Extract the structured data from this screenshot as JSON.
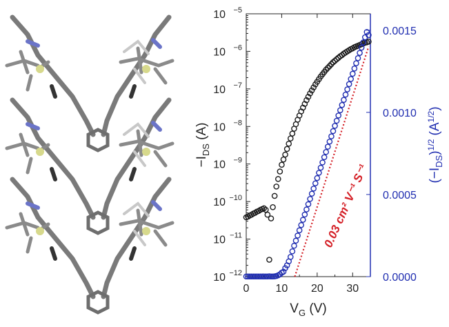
{
  "chart_data": {
    "type": "scatter",
    "xlabel": "V",
    "xlabel_sub": "G",
    "xlabel_unit": "(V)",
    "ylabel_left_prefix": "−I",
    "ylabel_left_sub": "DS",
    "ylabel_left_unit": "(A)",
    "ylabel_right_pre": "(−I",
    "ylabel_right_sub": "DS",
    "ylabel_right_mid": ")",
    "ylabel_right_sup": "1/2",
    "ylabel_right_unit": "(A",
    "ylabel_right_unit_sup": "1/2",
    "ylabel_right_unit_end": ")",
    "x_range": [
      0,
      35
    ],
    "x_ticks": [
      0,
      10,
      20,
      30
    ],
    "y_left_log": true,
    "y_left_range_exp": [
      -12,
      -5
    ],
    "y_left_ticks_exp": [
      -12,
      -11,
      -10,
      -9,
      -8,
      -7,
      -6,
      -5
    ],
    "y_right_range": [
      0.0,
      0.0016
    ],
    "y_right_ticks": [
      "0.0000",
      "0.0005",
      "0.0010",
      "0.0015"
    ],
    "annotation": {
      "text": "0.03 cm² V⁻¹ S⁻¹",
      "color": "#d41f26"
    },
    "fit_line": {
      "x": [
        13.7,
        34.5
      ],
      "y": [
        0.0,
        0.0014
      ],
      "color": "#d41f26"
    },
    "series": [
      {
        "axis": "left",
        "color": "#1a1a1a",
        "x": [
          0,
          0.5,
          1,
          1.5,
          2,
          2.5,
          3,
          3.5,
          4,
          4.5,
          5,
          5.5,
          6,
          6.5,
          7,
          7.5,
          8,
          8.5,
          9,
          9.5,
          10,
          10.5,
          11,
          11.5,
          12,
          12.5,
          13,
          13.5,
          14,
          14.5,
          15,
          15.5,
          16,
          16.5,
          17,
          17.5,
          18,
          18.5,
          19,
          19.5,
          20,
          20.5,
          21,
          21.5,
          22,
          22.5,
          23,
          23.5,
          24,
          24.5,
          25,
          25.5,
          26,
          26.5,
          27,
          27.5,
          28,
          28.5,
          29,
          29.5,
          30,
          30.5,
          31,
          31.5,
          32,
          32.5,
          33,
          33.5,
          34,
          34.5
        ],
        "y_exp": [
          -10.42,
          -10.4,
          -10.37,
          -10.35,
          -10.32,
          -10.3,
          -10.27,
          -10.25,
          -10.22,
          -10.2,
          -10.18,
          -10.22,
          -10.35,
          -11.55,
          -10.45,
          -10.15,
          -9.85,
          -9.6,
          -9.4,
          -9.2,
          -9.02,
          -8.88,
          -8.75,
          -8.6,
          -8.46,
          -8.32,
          -8.19,
          -8.06,
          -7.94,
          -7.82,
          -7.71,
          -7.6,
          -7.5,
          -7.4,
          -7.3,
          -7.21,
          -7.12,
          -7.04,
          -6.96,
          -6.88,
          -6.81,
          -6.74,
          -6.67,
          -6.61,
          -6.55,
          -6.49,
          -6.44,
          -6.39,
          -6.34,
          -6.29,
          -6.25,
          -6.21,
          -6.17,
          -6.13,
          -6.1,
          -6.06,
          -6.03,
          -6.0,
          -5.97,
          -5.94,
          -5.92,
          -5.89,
          -5.87,
          -5.85,
          -5.83,
          -5.81,
          -5.79,
          -5.77,
          -5.76,
          -5.74
        ]
      },
      {
        "axis": "right",
        "color": "#1f2db0",
        "x": [
          0,
          0.5,
          1,
          1.5,
          2,
          2.5,
          3,
          3.5,
          4,
          4.5,
          5,
          5.5,
          6,
          6.5,
          7,
          7.5,
          8,
          8.5,
          9,
          9.5,
          10,
          10.5,
          11,
          11.5,
          12,
          12.5,
          13,
          13.5,
          14,
          14.5,
          15,
          15.5,
          16,
          16.5,
          17,
          17.5,
          18,
          18.5,
          19,
          19.5,
          20,
          20.5,
          21,
          21.5,
          22,
          22.5,
          23,
          23.5,
          24,
          24.5,
          25,
          25.5,
          26,
          26.5,
          27,
          27.5,
          28,
          28.5,
          29,
          29.5,
          30,
          30.5,
          31,
          31.5,
          32,
          32.5,
          33,
          33.5,
          34,
          34.5
        ],
        "y": [
          1e-06,
          1e-06,
          1e-06,
          1e-06,
          1e-06,
          1e-06,
          1e-06,
          1e-06,
          1e-06,
          1e-06,
          1e-06,
          1e-06,
          1e-06,
          2e-06,
          1e-06,
          1e-06,
          2e-06,
          4e-06,
          8e-06,
          1.4e-05,
          2.4e-05,
          3e-05,
          5.2e-05,
          6.9e-05,
          9.3e-05,
          0.00012,
          0.000154,
          0.000188,
          0.000219,
          0.00025,
          0.000282,
          0.000314,
          0.000346,
          0.000378,
          0.000409,
          0.000441,
          0.000473,
          0.000505,
          0.000536,
          0.000568,
          0.0006,
          0.000632,
          0.000663,
          0.000695,
          0.000727,
          0.000759,
          0.000791,
          0.000822,
          0.000854,
          0.000886,
          0.000918,
          0.000949,
          0.000981,
          0.001013,
          0.001045,
          0.001076,
          0.001108,
          0.00114,
          0.001172,
          0.001203,
          0.001235,
          0.001267,
          0.001299,
          0.00133,
          0.001362,
          0.001394,
          0.001426,
          0.001457,
          0.001489,
          0.00147
        ]
      }
    ]
  }
}
